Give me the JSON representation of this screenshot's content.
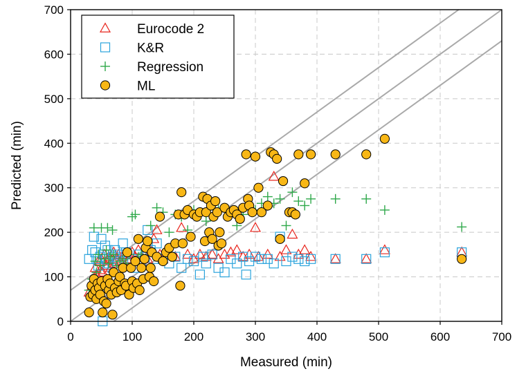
{
  "chart_data": {
    "type": "scatter",
    "title": "",
    "xlabel": "Measured (min)",
    "ylabel": "Predicted (min)",
    "xlim": [
      0,
      700
    ],
    "ylim": [
      0,
      700
    ],
    "xticks": [
      "0",
      "100",
      "200",
      "300",
      "400",
      "500",
      "600",
      "700"
    ],
    "yticks": [
      "0",
      "100",
      "200",
      "300",
      "400",
      "500",
      "600",
      "700"
    ],
    "grid": true,
    "legend_position": "top-left",
    "reference_lines": [
      {
        "slope": 1,
        "intercept": 0
      },
      {
        "slope": 1,
        "intercept": 70
      },
      {
        "slope": 1,
        "intercept": -70
      }
    ],
    "series": [
      {
        "name": "Eurocode 2",
        "marker": "triangle",
        "color": "#e8241c",
        "points": [
          [
            30,
            65
          ],
          [
            35,
            80
          ],
          [
            38,
            95
          ],
          [
            40,
            120
          ],
          [
            42,
            105
          ],
          [
            45,
            135
          ],
          [
            48,
            115
          ],
          [
            50,
            140
          ],
          [
            52,
            110
          ],
          [
            55,
            150
          ],
          [
            58,
            125
          ],
          [
            60,
            135
          ],
          [
            62,
            145
          ],
          [
            65,
            120
          ],
          [
            68,
            140
          ],
          [
            70,
            155
          ],
          [
            72,
            130
          ],
          [
            75,
            140
          ],
          [
            78,
            150
          ],
          [
            80,
            135
          ],
          [
            85,
            145
          ],
          [
            88,
            125
          ],
          [
            90,
            150
          ],
          [
            95,
            140
          ],
          [
            100,
            155
          ],
          [
            105,
            145
          ],
          [
            110,
            160
          ],
          [
            115,
            135
          ],
          [
            120,
            150
          ],
          [
            125,
            140
          ],
          [
            130,
            160
          ],
          [
            135,
            185
          ],
          [
            140,
            205
          ],
          [
            145,
            150
          ],
          [
            150,
            140
          ],
          [
            160,
            150
          ],
          [
            170,
            145
          ],
          [
            180,
            210
          ],
          [
            190,
            150
          ],
          [
            200,
            140
          ],
          [
            210,
            150
          ],
          [
            220,
            145
          ],
          [
            230,
            150
          ],
          [
            240,
            140
          ],
          [
            250,
            150
          ],
          [
            260,
            155
          ],
          [
            270,
            160
          ],
          [
            280,
            145
          ],
          [
            290,
            150
          ],
          [
            300,
            210
          ],
          [
            305,
            145
          ],
          [
            320,
            150
          ],
          [
            330,
            325
          ],
          [
            340,
            145
          ],
          [
            350,
            160
          ],
          [
            360,
            195
          ],
          [
            370,
            150
          ],
          [
            380,
            160
          ],
          [
            390,
            145
          ],
          [
            430,
            140
          ],
          [
            480,
            140
          ],
          [
            510,
            160
          ],
          [
            635,
            155
          ]
        ]
      },
      {
        "name": "K&R",
        "marker": "square",
        "color": "#2aa3dc",
        "points": [
          [
            30,
            140
          ],
          [
            35,
            160
          ],
          [
            38,
            190
          ],
          [
            40,
            155
          ],
          [
            42,
            140
          ],
          [
            45,
            125
          ],
          [
            48,
            145
          ],
          [
            50,
            185
          ],
          [
            52,
            0
          ],
          [
            54,
            150
          ],
          [
            56,
            170
          ],
          [
            58,
            140
          ],
          [
            60,
            160
          ],
          [
            62,
            130
          ],
          [
            65,
            150
          ],
          [
            68,
            120
          ],
          [
            70,
            145
          ],
          [
            72,
            160
          ],
          [
            75,
            135
          ],
          [
            80,
            150
          ],
          [
            85,
            175
          ],
          [
            90,
            155
          ],
          [
            95,
            130
          ],
          [
            100,
            140
          ],
          [
            105,
            120
          ],
          [
            110,
            150
          ],
          [
            115,
            135
          ],
          [
            120,
            145
          ],
          [
            125,
            205
          ],
          [
            130,
            160
          ],
          [
            135,
            140
          ],
          [
            140,
            175
          ],
          [
            150,
            140
          ],
          [
            160,
            130
          ],
          [
            170,
            145
          ],
          [
            180,
            120
          ],
          [
            190,
            140
          ],
          [
            200,
            135
          ],
          [
            210,
            105
          ],
          [
            215,
            145
          ],
          [
            220,
            130
          ],
          [
            230,
            150
          ],
          [
            240,
            120
          ],
          [
            250,
            110
          ],
          [
            260,
            140
          ],
          [
            270,
            130
          ],
          [
            280,
            145
          ],
          [
            285,
            105
          ],
          [
            290,
            135
          ],
          [
            300,
            145
          ],
          [
            310,
            140
          ],
          [
            320,
            140
          ],
          [
            330,
            130
          ],
          [
            340,
            190
          ],
          [
            350,
            135
          ],
          [
            360,
            145
          ],
          [
            370,
            140
          ],
          [
            380,
            135
          ],
          [
            390,
            140
          ],
          [
            430,
            140
          ],
          [
            480,
            140
          ],
          [
            510,
            155
          ],
          [
            635,
            155
          ]
        ]
      },
      {
        "name": "Regression",
        "marker": "plus",
        "color": "#2ea84a",
        "points": [
          [
            30,
            70
          ],
          [
            35,
            95
          ],
          [
            38,
            210
          ],
          [
            40,
            135
          ],
          [
            42,
            110
          ],
          [
            45,
            150
          ],
          [
            48,
            125
          ],
          [
            50,
            210
          ],
          [
            55,
            140
          ],
          [
            58,
            160
          ],
          [
            60,
            210
          ],
          [
            62,
            130
          ],
          [
            65,
            145
          ],
          [
            68,
            205
          ],
          [
            70,
            150
          ],
          [
            75,
            125
          ],
          [
            80,
            135
          ],
          [
            85,
            140
          ],
          [
            90,
            130
          ],
          [
            95,
            150
          ],
          [
            100,
            235
          ],
          [
            105,
            240
          ],
          [
            110,
            145
          ],
          [
            115,
            150
          ],
          [
            120,
            140
          ],
          [
            130,
            215
          ],
          [
            140,
            255
          ],
          [
            150,
            245
          ],
          [
            160,
            200
          ],
          [
            170,
            240
          ],
          [
            180,
            235
          ],
          [
            190,
            205
          ],
          [
            200,
            250
          ],
          [
            210,
            245
          ],
          [
            220,
            225
          ],
          [
            230,
            260
          ],
          [
            240,
            250
          ],
          [
            250,
            255
          ],
          [
            260,
            245
          ],
          [
            270,
            215
          ],
          [
            280,
            240
          ],
          [
            290,
            255
          ],
          [
            300,
            250
          ],
          [
            310,
            265
          ],
          [
            320,
            280
          ],
          [
            330,
            265
          ],
          [
            340,
            275
          ],
          [
            350,
            215
          ],
          [
            360,
            290
          ],
          [
            370,
            270
          ],
          [
            380,
            260
          ],
          [
            390,
            275
          ],
          [
            430,
            275
          ],
          [
            480,
            275
          ],
          [
            510,
            250
          ],
          [
            635,
            212
          ]
        ]
      },
      {
        "name": "ML",
        "marker": "circle",
        "color": "#f8b716",
        "points": [
          [
            30,
            20
          ],
          [
            32,
            55
          ],
          [
            34,
            80
          ],
          [
            36,
            60
          ],
          [
            38,
            95
          ],
          [
            40,
            70
          ],
          [
            42,
            50
          ],
          [
            44,
            85
          ],
          [
            46,
            75
          ],
          [
            48,
            60
          ],
          [
            50,
            90
          ],
          [
            52,
            20
          ],
          [
            54,
            45
          ],
          [
            56,
            80
          ],
          [
            58,
            40
          ],
          [
            60,
            95
          ],
          [
            62,
            70
          ],
          [
            64,
            85
          ],
          [
            66,
            60
          ],
          [
            68,
            15
          ],
          [
            70,
            110
          ],
          [
            72,
            75
          ],
          [
            75,
            65
          ],
          [
            78,
            90
          ],
          [
            80,
            100
          ],
          [
            82,
            70
          ],
          [
            85,
            120
          ],
          [
            88,
            85
          ],
          [
            90,
            80
          ],
          [
            92,
            155
          ],
          [
            95,
            60
          ],
          [
            98,
            120
          ],
          [
            100,
            90
          ],
          [
            102,
            75
          ],
          [
            105,
            135
          ],
          [
            108,
            85
          ],
          [
            110,
            185
          ],
          [
            112,
            70
          ],
          [
            115,
            120
          ],
          [
            118,
            95
          ],
          [
            120,
            140
          ],
          [
            122,
            165
          ],
          [
            125,
            180
          ],
          [
            128,
            100
          ],
          [
            130,
            120
          ],
          [
            132,
            155
          ],
          [
            135,
            90
          ],
          [
            140,
            145
          ],
          [
            145,
            235
          ],
          [
            150,
            135
          ],
          [
            155,
            155
          ],
          [
            160,
            165
          ],
          [
            165,
            145
          ],
          [
            170,
            175
          ],
          [
            175,
            240
          ],
          [
            178,
            80
          ],
          [
            180,
            290
          ],
          [
            182,
            175
          ],
          [
            185,
            240
          ],
          [
            190,
            250
          ],
          [
            195,
            190
          ],
          [
            200,
            240
          ],
          [
            205,
            235
          ],
          [
            210,
            245
          ],
          [
            215,
            280
          ],
          [
            218,
            180
          ],
          [
            220,
            245
          ],
          [
            222,
            275
          ],
          [
            225,
            200
          ],
          [
            228,
            260
          ],
          [
            230,
            185
          ],
          [
            232,
            235
          ],
          [
            235,
            270
          ],
          [
            238,
            245
          ],
          [
            240,
            170
          ],
          [
            242,
            200
          ],
          [
            245,
            175
          ],
          [
            250,
            255
          ],
          [
            255,
            235
          ],
          [
            260,
            245
          ],
          [
            265,
            250
          ],
          [
            270,
            240
          ],
          [
            275,
            230
          ],
          [
            280,
            255
          ],
          [
            285,
            375
          ],
          [
            288,
            275
          ],
          [
            290,
            260
          ],
          [
            295,
            245
          ],
          [
            300,
            370
          ],
          [
            305,
            300
          ],
          [
            310,
            245
          ],
          [
            320,
            260
          ],
          [
            325,
            380
          ],
          [
            330,
            375
          ],
          [
            335,
            365
          ],
          [
            340,
            185
          ],
          [
            345,
            315
          ],
          [
            355,
            245
          ],
          [
            360,
            245
          ],
          [
            365,
            240
          ],
          [
            370,
            375
          ],
          [
            380,
            310
          ],
          [
            390,
            375
          ],
          [
            430,
            375
          ],
          [
            480,
            375
          ],
          [
            510,
            410
          ],
          [
            635,
            140
          ]
        ]
      }
    ]
  }
}
